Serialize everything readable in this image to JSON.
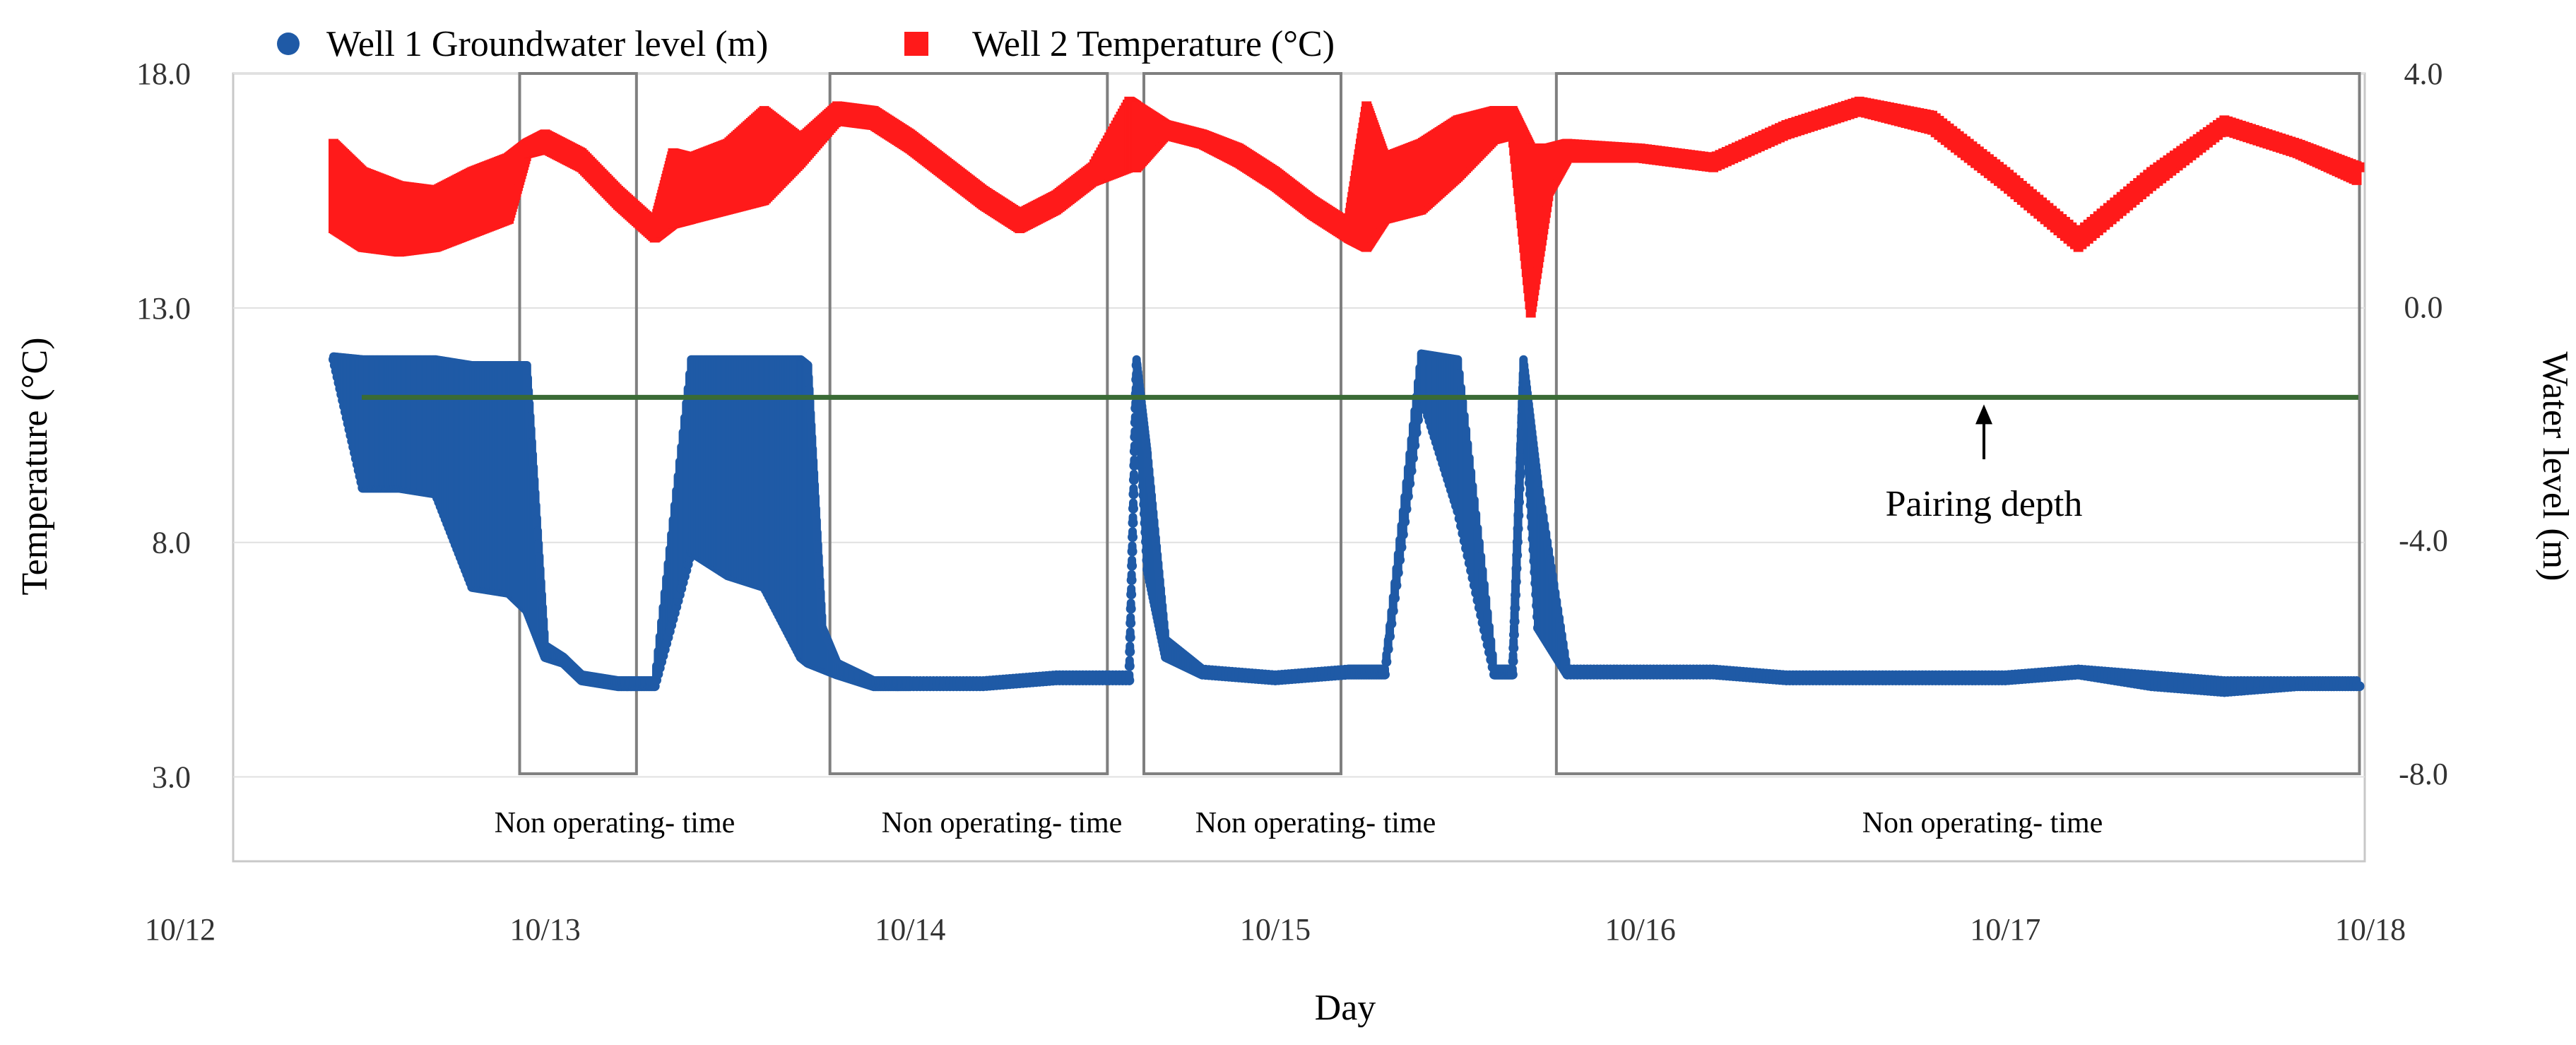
{
  "colors": {
    "well1": "#1f5aa6",
    "well2": "#ff1a1a",
    "pairing_line": "#3a6b35",
    "box": "#7f7f7f",
    "gridline": "#e0e0e0"
  },
  "legend": {
    "well1_label": "Well 1 Groundwater  level (m)",
    "well2_label": "Well 2 Temperature (°C)",
    "well1_icon": "blue-circle-marker",
    "well2_icon": "red-square-marker"
  },
  "annotations": {
    "non_operating_label": "Non operating- time",
    "pairing_label": "Pairing  depth"
  },
  "chart_data": {
    "type": "scatter",
    "xlabel": "Day",
    "ylabel_left": "Temperature (°C)",
    "ylabel_right": "Water level (m)",
    "x_ticks": [
      "10/12",
      "10/13",
      "10/14",
      "10/15",
      "10/16",
      "10/17",
      "10/18"
    ],
    "x_range": [
      "10/12",
      "10/18"
    ],
    "y_left_ticks": [
      "18.0",
      "13.0",
      "8.0",
      "3.0"
    ],
    "y_left_range": [
      1.2,
      18.0
    ],
    "y_right_ticks": [
      "4.0",
      "0.0",
      "-4.0",
      "-8.0"
    ],
    "y_right_range": [
      -9.5,
      4.0
    ],
    "grid": "horizontal",
    "legend_position": "top-left",
    "pairing_depth_m": -1.55,
    "non_operating_periods_day": [
      [
        12.93,
        13.25
      ],
      [
        13.78,
        14.54
      ],
      [
        14.64,
        15.18
      ],
      [
        15.77,
        17.97
      ]
    ],
    "series": [
      {
        "name": "Well 1 Groundwater  level (m)",
        "axis": "right",
        "marker": "circle",
        "color": "#1f5aa6",
        "x_day": [
          12.42,
          12.5,
          12.6,
          12.7,
          12.8,
          12.9,
          12.95,
          13.0,
          13.05,
          13.1,
          13.2,
          13.3,
          13.4,
          13.5,
          13.6,
          13.7,
          13.72,
          13.76,
          13.8,
          13.9,
          14.0,
          14.2,
          14.4,
          14.6,
          14.62,
          14.65,
          14.7,
          14.8,
          15.0,
          15.2,
          15.3,
          15.4,
          15.5,
          15.6,
          15.65,
          15.68,
          15.72,
          15.8,
          16.0,
          16.2,
          16.4,
          16.6,
          16.8,
          17.0,
          17.2,
          17.4,
          17.6,
          17.8,
          17.97
        ],
        "y_min": [
          -0.9,
          -3.1,
          -3.1,
          -3.2,
          -4.8,
          -4.9,
          -5.2,
          -6.0,
          -6.1,
          -6.4,
          -6.5,
          -6.5,
          -4.2,
          -4.6,
          -4.8,
          -6.0,
          -6.1,
          -6.2,
          -6.3,
          -6.5,
          -6.5,
          -6.5,
          -6.4,
          -6.4,
          -1.0,
          -4.5,
          -6.0,
          -6.3,
          -6.4,
          -6.3,
          -6.3,
          -1.5,
          -3.5,
          -6.3,
          -6.3,
          -1.3,
          -5.5,
          -6.3,
          -6.3,
          -6.3,
          -6.4,
          -6.4,
          -6.4,
          -6.4,
          -6.3,
          -6.5,
          -6.6,
          -6.5,
          -6.5
        ],
        "y_max": [
          -0.85,
          -0.9,
          -0.9,
          -0.9,
          -1.0,
          -1.0,
          -1.0,
          -5.8,
          -6.0,
          -6.3,
          -6.4,
          -6.4,
          -0.9,
          -0.9,
          -0.9,
          -0.9,
          -1.0,
          -5.5,
          -6.1,
          -6.4,
          -6.4,
          -6.4,
          -6.3,
          -6.3,
          -0.9,
          -2.5,
          -5.7,
          -6.2,
          -6.3,
          -6.2,
          -6.2,
          -0.8,
          -0.9,
          -6.2,
          -6.2,
          -0.9,
          -3.0,
          -6.2,
          -6.2,
          -6.2,
          -6.3,
          -6.3,
          -6.3,
          -6.3,
          -6.2,
          -6.3,
          -6.4,
          -6.4,
          -6.4
        ]
      },
      {
        "name": "Well 2 Temperature (°C)",
        "axis": "left",
        "marker": "square",
        "color": "#ff1a1a",
        "x_day": [
          12.42,
          12.5,
          12.6,
          12.7,
          12.8,
          12.9,
          12.95,
          13.0,
          13.1,
          13.2,
          13.3,
          13.35,
          13.4,
          13.5,
          13.6,
          13.7,
          13.8,
          13.9,
          14.0,
          14.1,
          14.2,
          14.3,
          14.4,
          14.5,
          14.6,
          14.62,
          14.7,
          14.8,
          14.9,
          15.0,
          15.1,
          15.2,
          15.25,
          15.3,
          15.4,
          15.5,
          15.6,
          15.65,
          15.7,
          15.75,
          15.8,
          16.0,
          16.2,
          16.4,
          16.6,
          16.8,
          17.0,
          17.2,
          17.4,
          17.6,
          17.8,
          17.97
        ],
        "y_min": [
          14.7,
          14.3,
          14.2,
          14.3,
          14.6,
          14.9,
          16.3,
          16.4,
          16.0,
          15.2,
          14.5,
          14.8,
          14.9,
          15.1,
          15.3,
          16.1,
          17.0,
          16.9,
          16.4,
          15.8,
          15.2,
          14.7,
          15.1,
          15.7,
          16.0,
          16.0,
          16.7,
          16.5,
          16.1,
          15.6,
          15.0,
          14.5,
          14.3,
          14.9,
          15.1,
          15.8,
          16.6,
          16.7,
          12.9,
          15.5,
          16.2,
          16.2,
          16.0,
          16.7,
          17.2,
          16.8,
          15.6,
          14.3,
          15.6,
          16.8,
          16.3,
          15.7
        ],
        "y_max": [
          16.5,
          15.9,
          15.6,
          15.5,
          15.9,
          16.2,
          16.5,
          16.7,
          16.3,
          15.5,
          14.8,
          16.3,
          16.2,
          16.5,
          17.2,
          16.6,
          17.3,
          17.2,
          16.7,
          16.1,
          15.5,
          15.0,
          15.4,
          16.0,
          17.4,
          17.3,
          16.9,
          16.7,
          16.4,
          15.9,
          15.3,
          14.8,
          17.3,
          16.2,
          16.5,
          17.0,
          17.2,
          17.2,
          16.4,
          16.4,
          16.5,
          16.4,
          16.2,
          16.9,
          17.4,
          17.1,
          15.9,
          14.6,
          15.9,
          17.0,
          16.5,
          16.0
        ]
      }
    ]
  }
}
